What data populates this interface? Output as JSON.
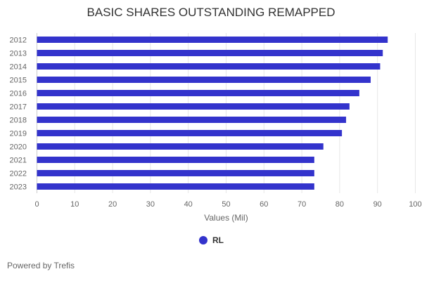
{
  "chart_data": {
    "type": "bar",
    "orientation": "horizontal",
    "title": "BASIC SHARES OUTSTANDING REMAPPED",
    "categories": [
      "2012",
      "2013",
      "2014",
      "2015",
      "2016",
      "2017",
      "2018",
      "2019",
      "2020",
      "2021",
      "2022",
      "2023"
    ],
    "series": [
      {
        "name": "RL",
        "color": "#3333cc",
        "values": [
          92.7,
          91.4,
          90.7,
          88.2,
          85.2,
          82.6,
          81.7,
          80.6,
          75.7,
          73.3,
          73.3,
          73.3
        ]
      }
    ],
    "xlabel": "Values (Mil)",
    "ylabel": "",
    "xlim": [
      0,
      100
    ],
    "xticks": [
      "0",
      "10",
      "20",
      "30",
      "40",
      "50",
      "60",
      "70",
      "80",
      "90",
      "100"
    ],
    "grid": true,
    "legend": "bottom-center"
  },
  "footer": {
    "credit": "Powered by Trefis"
  }
}
